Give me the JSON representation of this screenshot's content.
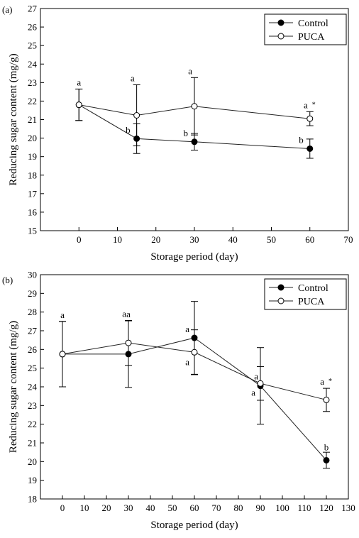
{
  "chart_data": [
    {
      "panel_label": "(a)",
      "type": "line",
      "xlabel": "Storage period (day)",
      "ylabel": "Reducing sugar content (mg/g)",
      "xlim": [
        -10,
        70
      ],
      "ylim": [
        15,
        27
      ],
      "xticks": [
        0,
        10,
        20,
        30,
        40,
        50,
        60,
        70
      ],
      "yticks": [
        15,
        16,
        17,
        18,
        19,
        20,
        21,
        22,
        23,
        24,
        25,
        26,
        27
      ],
      "grid": false,
      "legend": "top-right",
      "series": [
        {
          "name": "Control",
          "marker": "filled-circle",
          "points": [
            {
              "x": 0,
              "y": 21.8,
              "err": 0.85,
              "label": "a"
            },
            {
              "x": 15,
              "y": 19.97,
              "err": 0.8,
              "label": "b"
            },
            {
              "x": 30,
              "y": 19.8,
              "err": 0.45,
              "label": "b"
            },
            {
              "x": 60,
              "y": 19.43,
              "err": 0.52,
              "label": "b"
            }
          ]
        },
        {
          "name": "PUCA",
          "marker": "open-circle",
          "points": [
            {
              "x": 0,
              "y": 21.8,
              "err": 0.85,
              "label": ""
            },
            {
              "x": 15,
              "y": 21.23,
              "err": 1.65,
              "label": "a"
            },
            {
              "x": 30,
              "y": 21.72,
              "err": 1.55,
              "label": "a"
            },
            {
              "x": 60,
              "y": 21.05,
              "err": 0.38,
              "label": "a*"
            }
          ]
        }
      ]
    },
    {
      "panel_label": "(b)",
      "type": "line",
      "xlabel": "Storage period (day)",
      "ylabel": "Reducing sugar content (mg/g)",
      "xlim": [
        -10,
        130
      ],
      "ylim": [
        18,
        30
      ],
      "xticks": [
        0,
        10,
        20,
        30,
        40,
        50,
        60,
        70,
        80,
        90,
        100,
        110,
        120,
        130
      ],
      "yticks": [
        18,
        19,
        20,
        21,
        22,
        23,
        24,
        25,
        26,
        27,
        28,
        29,
        30
      ],
      "grid": false,
      "legend": "top-right",
      "series": [
        {
          "name": "Control",
          "marker": "filled-circle",
          "points": [
            {
              "x": 0,
              "y": 25.75,
              "err": 1.75,
              "label": "a"
            },
            {
              "x": 30,
              "y": 25.75,
              "err": 1.78,
              "label": "a"
            },
            {
              "x": 60,
              "y": 26.62,
              "err": 1.95,
              "label": "a"
            },
            {
              "x": 90,
              "y": 24.05,
              "err": 2.05,
              "label": "a"
            },
            {
              "x": 120,
              "y": 20.07,
              "err": 0.43,
              "label": "b"
            }
          ]
        },
        {
          "name": "PUCA",
          "marker": "open-circle",
          "points": [
            {
              "x": 0,
              "y": 25.75,
              "err": 1.75,
              "label": ""
            },
            {
              "x": 30,
              "y": 26.35,
              "err": 1.2,
              "label": "a"
            },
            {
              "x": 60,
              "y": 25.85,
              "err": 1.2,
              "label": "a"
            },
            {
              "x": 90,
              "y": 24.18,
              "err": 0.9,
              "label": "a"
            },
            {
              "x": 120,
              "y": 23.3,
              "err": 0.62,
              "label": "a*"
            }
          ]
        }
      ]
    }
  ]
}
